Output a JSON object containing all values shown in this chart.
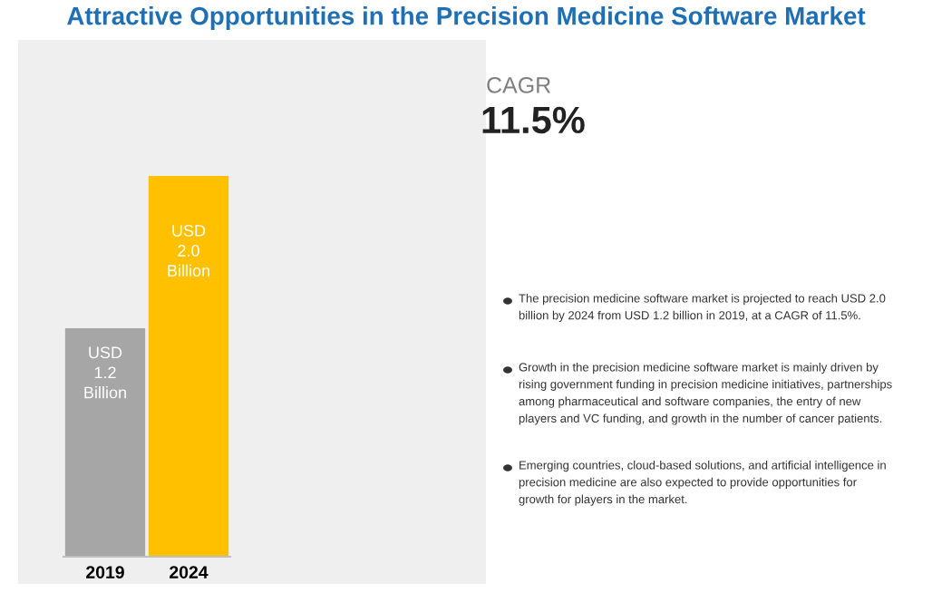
{
  "chart_data": {
    "type": "bar",
    "title": "Attractive Opportunities in the Precision Medicine Software Market",
    "categories": [
      "2019",
      "2024"
    ],
    "values": [
      1.2,
      2.0
    ],
    "colors": [
      "#a6a6a6",
      "#ffc000"
    ],
    "value_labels": [
      "USD\n1.2\nBillion",
      "USD\n2.0\nBillion"
    ],
    "annotations": [
      "CAGR",
      "11.5%",
      "The precision medicine software market is projected to reach USD 2.0\nbillion by 2024 from USD 1.2 billion in 2019, at a CAGR of 11.5%.",
      "Growth in the precision medicine software market is mainly driven by\nrising government funding in precision medicine initiatives, partnerships\namong pharmaceutical and software companies, the entry of new\nplayers and VC funding, and growth in the number of cancer patients.",
      "Emerging countries, cloud-based solutions, and artificial intelligence in\nprecision medicine are also expected to provide opportunities for\ngrowth for players in the market."
    ],
    "data_labels": false
  }
}
